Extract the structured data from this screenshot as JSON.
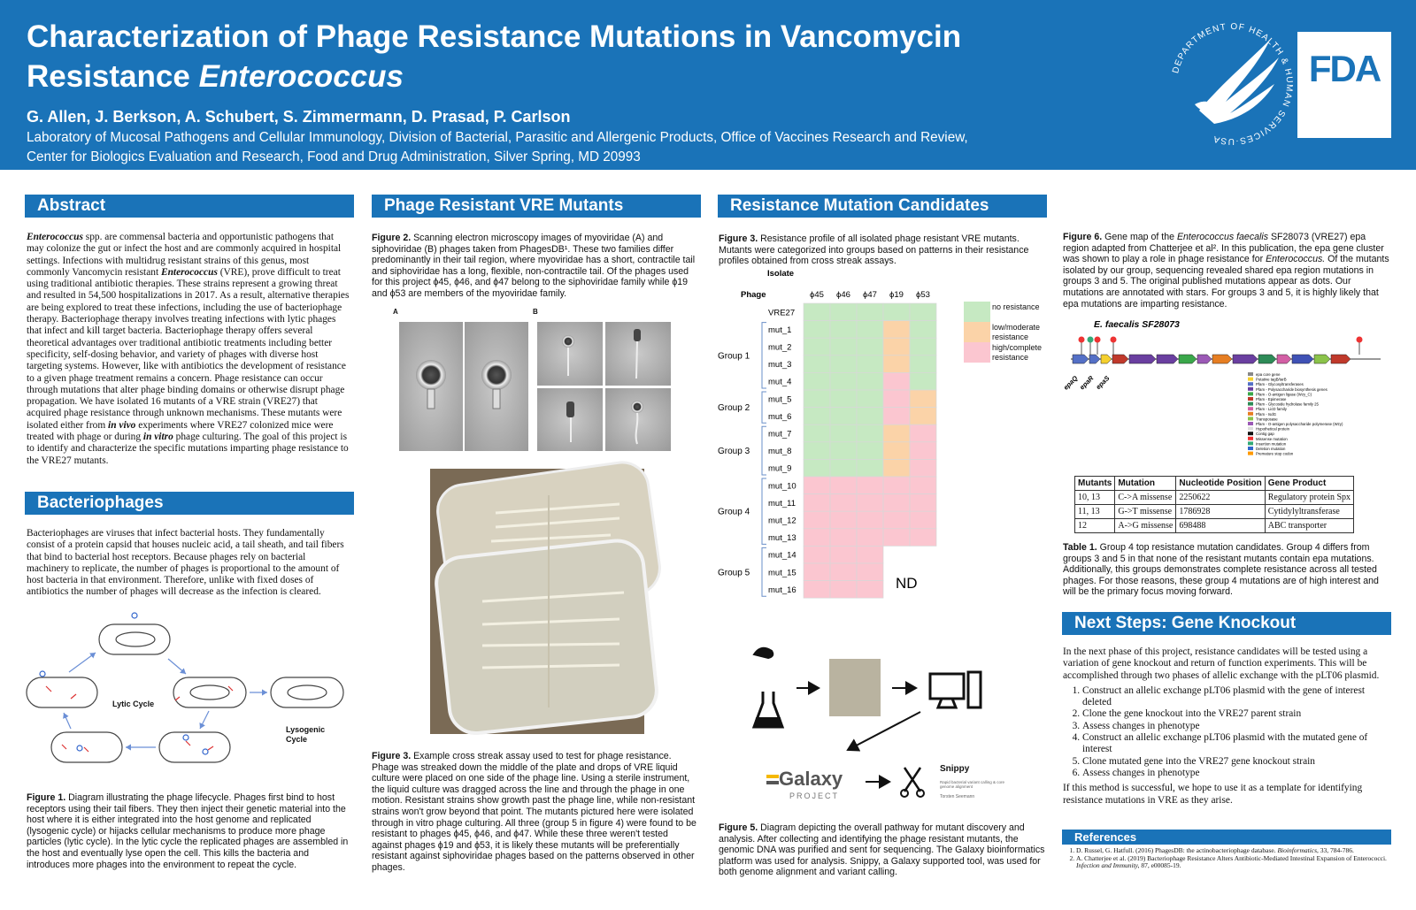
{
  "header": {
    "title_line1": "Characterization of Phage Resistance Mutations in Vancomycin",
    "title_line2": [
      "Resistance ",
      {
        "em": "Enterococcus"
      }
    ],
    "authors": "G. Allen, J. Berkson, A. Schubert, S. Zimmermann, D. Prasad, P. Carlson",
    "affiliation_1": "Laboratory of Mucosal Pathogens and Cellular Immunology, Division of Bacterial, Parasitic and Allergenic Products, Office of Vaccines Research and Review,",
    "affiliation_2": "Center for Biologics Evaluation and Research, Food and Drug Administration, Silver Spring, MD 20993",
    "seal_text": "DEPARTMENT OF HEALTH & HUMAN SERVICES·USA",
    "logo": "FDA"
  },
  "abstract": {
    "heading": "Abstract",
    "text": [
      {
        "strong_em": "Enterococcus"
      },
      " spp. are commensal bacteria and opportunistic pathogens that may colonize the gut or infect the host and are commonly acquired in hospital settings. Infections with multidrug resistant strains of this genus, most commonly Vancomycin resistant ",
      {
        "strong_em": "Enterococcus"
      },
      " (VRE), prove difficult to treat using traditional antibiotic therapies. These strains represent a growing threat and resulted in 54,500 hospitalizations in 2017. As a result, alternative therapies are being explored to treat these infections, including the use of bacteriophage therapy. Bacteriophage therapy involves treating infections with lytic phages that infect and kill target bacteria. Bacteriophage therapy offers several theoretical advantages over traditional antibiotic treatments including better specificity, self-dosing behavior, and variety of phages with diverse host targeting systems. However, like with antibiotics the development of resistance to a given phage treatment remains a concern. Phage resistance can occur through mutations that alter phage binding domains or otherwise disrupt phage propagation. We have isolated 16 mutants of a VRE strain (VRE27) that acquired phage resistance through unknown mechanisms. These mutants were isolated either from ",
      {
        "strong_em": "in vivo"
      },
      " experiments where VRE27 colonized mice were treated with phage or during ",
      {
        "strong_em": "in vitro"
      },
      " phage culturing. The goal of this project is to identify and characterize the specific mutations imparting phage resistance to the VRE27 mutants."
    ]
  },
  "bacteriophages": {
    "heading": "Bacteriophages",
    "text": "Bacteriophages are viruses that infect bacterial hosts. They fundamentally consist of a protein capsid that houses nucleic acid, a tail sheath, and tail fibers that bind to bacterial host receptors. Because phages rely on bacterial machinery to replicate, the number of phages is proportional to the amount of host bacteria in that environment. Therefore, unlike with fixed doses of antibiotics the number of phages will decrease as the infection is cleared.",
    "figure_labels": {
      "lytic": "Lytic Cycle",
      "lysogenic": "Lysogenic Cycle"
    },
    "figure_label": "Figure 1.",
    "figure_caption": "Diagram illustrating the phage lifecycle. Phages first bind to host receptors using their tail fibers. They then inject their genetic material into the host where it is either integrated into the host genome and replicated (lysogenic cycle) or hijacks cellular mechanisms to produce more phage particles (lytic cycle). In the lytic cycle the replicated phages are assembled in the host and eventually lyse open the cell. This kills the bacteria and introduces more phages into the environment to repeat the cycle."
  },
  "mutants": {
    "heading": "Phage Resistant VRE Mutants",
    "figure2_label": "Figure 2.",
    "figure2_caption": "Scanning electron microscopy images of myoviridae (A) and siphoviridae (B) phages taken from PhagesDB¹. These two families differ predominantly in their tail region, where myoviridae has a short, contractile tail and siphoviridae has a long, flexible, non-contractile tail. Of the phages used for this project ϕ45, ϕ46, and ϕ47 belong to the siphoviridae family while ϕ19 and ϕ53 are members of the myoviridae family.",
    "panel_a": "A",
    "panel_b": "B",
    "figure3_label": "Figure 3.",
    "figure3_caption": "Example cross streak assay used to test for phage resistance. Phage was streaked down the middle of the plate and drops of VRE liquid culture were placed on one side of the phage line. Using a sterile instrument, the liquid culture was dragged across the line and through the phage in one motion. Resistant strains show growth past the phage line, while non-resistant strains won't grow beyond that point. The mutants pictured here were isolated through in vitro phage culturing. All three (group 5 in figure 4) were found to be resistant to phages ϕ45, ϕ46, and ϕ47. While these three weren't tested against phages ϕ19 and ϕ53, it is likely these mutants will be preferentially resistant against siphoviridae phages based on the patterns observed in other phages."
  },
  "candidates": {
    "heading": "Resistance Mutation Candidates",
    "figure3_label": "Figure 3.",
    "figure3_caption": "Resistance profile of all isolated phage resistant VRE mutants. Mutants were categorized into groups based on patterns in their resistance profiles obtained from cross streak assays.",
    "profile": {
      "type": "heatmap",
      "row_header": "Isolate",
      "column_header": "Phage",
      "columns": [
        "ϕ45",
        "ϕ46",
        "ϕ47",
        "ϕ19",
        "ϕ53"
      ],
      "legend": [
        {
          "label": "no resistance",
          "color": "#c6e9c2"
        },
        {
          "label": "low/moderate resistance",
          "color": "#fbd3a8"
        },
        {
          "label": "high/complete resistance",
          "color": "#fbc6d0"
        }
      ],
      "not_determined": "ND",
      "control": {
        "isolate": "VRE27",
        "levels": [
          0,
          0,
          0,
          0,
          0
        ]
      },
      "groups": [
        {
          "name": "Group 1",
          "isolates": [
            {
              "isolate": "mut_1",
              "levels": [
                0,
                0,
                0,
                1,
                0
              ]
            },
            {
              "isolate": "mut_2",
              "levels": [
                0,
                0,
                0,
                1,
                0
              ]
            },
            {
              "isolate": "mut_3",
              "levels": [
                0,
                0,
                0,
                1,
                0
              ]
            },
            {
              "isolate": "mut_4",
              "levels": [
                0,
                0,
                0,
                2,
                0
              ]
            }
          ]
        },
        {
          "name": "Group 2",
          "isolates": [
            {
              "isolate": "mut_5",
              "levels": [
                0,
                0,
                0,
                2,
                1
              ]
            },
            {
              "isolate": "mut_6",
              "levels": [
                0,
                0,
                0,
                2,
                1
              ]
            }
          ]
        },
        {
          "name": "Group 3",
          "isolates": [
            {
              "isolate": "mut_7",
              "levels": [
                0,
                0,
                0,
                1,
                2
              ]
            },
            {
              "isolate": "mut_8",
              "levels": [
                0,
                0,
                0,
                1,
                2
              ]
            },
            {
              "isolate": "mut_9",
              "levels": [
                0,
                0,
                0,
                1,
                2
              ]
            }
          ]
        },
        {
          "name": "Group 4",
          "isolates": [
            {
              "isolate": "mut_10",
              "levels": [
                2,
                2,
                2,
                2,
                2
              ]
            },
            {
              "isolate": "mut_11",
              "levels": [
                2,
                2,
                2,
                2,
                2
              ]
            },
            {
              "isolate": "mut_12",
              "levels": [
                2,
                2,
                2,
                2,
                2
              ]
            },
            {
              "isolate": "mut_13",
              "levels": [
                2,
                2,
                2,
                2,
                2
              ]
            }
          ]
        },
        {
          "name": "Group 5",
          "isolates": [
            {
              "isolate": "mut_14",
              "levels": [
                2,
                2,
                2,
                null,
                null
              ]
            },
            {
              "isolate": "mut_15",
              "levels": [
                2,
                2,
                2,
                null,
                null
              ]
            },
            {
              "isolate": "mut_16",
              "levels": [
                2,
                2,
                2,
                null,
                null
              ]
            }
          ]
        }
      ]
    },
    "figure5": {
      "galaxy": "Galaxy",
      "galaxy_sub": "PROJECT",
      "snippy": "Snippy",
      "snippy_sub": "Rapid bacterial variant calling & core genome alignment",
      "snippy_author": "Torsten Seemann"
    },
    "figure5_label": "Figure 5.",
    "figure5_caption": "Diagram depicting the overall pathway for mutant discovery and analysis. After collecting and identifying the phage resistant mutants, the genomic DNA was purified and sent for sequencing. The Galaxy bioinformatics platform was used for analysis. Snippy, a Galaxy supported tool, was used for both genome alignment and variant calling.",
    "figure6_label": "Figure 6.",
    "figure6_caption": [
      "Gene map of the ",
      {
        "em": "Enterococcus faecalis"
      },
      " SF28073 (VRE27) epa region adapted from Chatterjee et al². In this publication, the epa gene cluster was shown to play a role in phage resistance for ",
      {
        "em": "Enterococcus."
      },
      " Of the mutants isolated by our group, sequencing revealed shared epa region mutations in groups 3 and 5. The original published mutations appear as dots. Our mutations are annotated with stars. For groups 3 and 5, it is highly likely that epa mutations are imparting resistance."
    ],
    "gene_map": {
      "title": "E. faecalis SF28073",
      "genes": [
        "epaQ",
        "epaR",
        "epaS"
      ],
      "legend": [
        "epa core gene",
        "Putative tagB/tarB",
        "Pfam - Glycosyltransferases",
        "Pfam - Polysaccharide biosynthesis genes",
        "Pfam - O-antigen ligase (Wzy_C)",
        "Pfam - Epimerase",
        "Pfam - Glycoside hydrolase family 25",
        "Pfam - LicD family",
        "Pfam - IsdG",
        "Transposase",
        "Pfam - O-antigen polysaccharide polymerase (Wzy)",
        "Hypothetical protein",
        "Contig gap",
        "Missense mutation",
        "Insertion mutation",
        "Deletion mutation",
        "Premature stop codon"
      ]
    },
    "table": {
      "header": [
        "Mutants",
        "Mutation",
        "Nucleotide Position",
        "Gene Product"
      ],
      "rows": [
        [
          "10, 13",
          "C->A missense",
          "2250622",
          "Regulatory  protein Spx"
        ],
        [
          "11, 13",
          "G->T missense",
          "1786928",
          "Cytidylyltransferase"
        ],
        [
          "12",
          "A->G missense",
          "698488",
          "ABC transporter"
        ]
      ]
    },
    "table_label": "Table 1.",
    "table_caption": "Group 4 top resistance mutation candidates. Group 4 differs from groups 3 and 5 in that none of the resistant mutants contain epa mutations. Additionally, this groups demonstrates complete resistance across all tested phages. For those reasons, these group 4 mutations are of high interest and will be the primary focus moving forward."
  },
  "next_steps": {
    "heading": "Next Steps: Gene Knockout",
    "intro": "In the next phase of this project, resistance candidates will be tested using a variation of gene knockout and return of function experiments. This will be accomplished through two phases of allelic exchange with the pLT06 plasmid.",
    "steps": [
      "Construct an allelic exchange pLT06 plasmid with the  gene of interest deleted",
      "Clone the gene knockout into the VRE27 parent strain",
      "Assess changes in phenotype",
      "Construct an allelic exchange pLT06 plasmid with the mutated gene of interest",
      "Clone mutated gene into the VRE27 gene knockout strain",
      "Assess changes in phenotype"
    ],
    "outro": "If this method is successful, we hope to use it as a template for identifying resistance mutations in VRE as they arise."
  },
  "references": {
    "heading": "References",
    "items": [
      [
        "D. Russel, G. Hatfull. (2016) PhagesDB: the actinobacteriophage database. ",
        {
          "em": "Bioinformatics,"
        },
        " 33, 784-786."
      ],
      [
        "A. Chatterjee et al. (2019) Bacteriophage Resistance Alters Antibiotic-Mediated Intestinal Expansion of Enterococci. ",
        {
          "em": "Infection and Immunity,"
        },
        " 87, e00085-19."
      ]
    ]
  }
}
